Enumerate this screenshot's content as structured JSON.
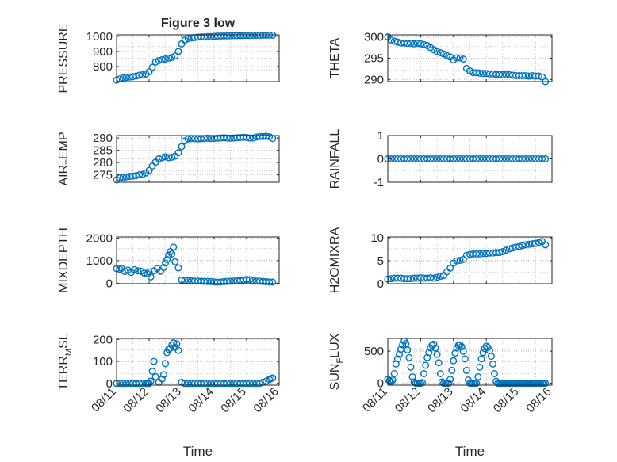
{
  "figure": {
    "title": "Figure 3 low",
    "colors": {
      "marker": "#0072bd",
      "axis": "#262626",
      "grid": "#bdbdbd",
      "background": "#ffffff"
    }
  },
  "chart_data": [
    {
      "id": "pressure",
      "type": "scatter",
      "title": "Figure 3 low",
      "ylabel": "PRESSURE",
      "ylabel_base": "PRESSURE",
      "ylabel_sub": "",
      "ylabel_rest": "",
      "xlabel": "",
      "ylim": [
        700,
        1010
      ],
      "yticks": [
        800,
        900,
        1000
      ],
      "xlim": [
        0,
        5
      ],
      "xticks": [],
      "xtick_labels": [],
      "grid": true,
      "marker": "circle",
      "x": [
        0.0,
        0.1,
        0.2,
        0.3,
        0.4,
        0.5,
        0.6,
        0.7,
        0.8,
        0.9,
        1.0,
        1.1,
        1.2,
        1.3,
        1.4,
        1.5,
        1.6,
        1.7,
        1.8,
        1.9,
        2.0,
        2.1,
        2.2,
        2.3,
        2.4,
        2.5,
        2.6,
        2.7,
        2.8,
        2.9,
        3.0,
        3.1,
        3.2,
        3.3,
        3.4,
        3.5,
        3.6,
        3.7,
        3.8,
        3.9,
        4.0,
        4.1,
        4.2,
        4.3,
        4.4,
        4.5,
        4.6,
        4.7,
        4.8
      ],
      "y": [
        710,
        718,
        724,
        728,
        730,
        733,
        737,
        742,
        745,
        750,
        765,
        795,
        830,
        840,
        845,
        850,
        855,
        860,
        870,
        900,
        950,
        975,
        985,
        990,
        992,
        995,
        996,
        996,
        998,
        998,
        1000,
        1002,
        1002,
        1003,
        1003,
        1004,
        1005,
        1005,
        1005,
        1006,
        1006,
        1006,
        1007,
        1007,
        1007,
        1008,
        1008,
        1008,
        1008
      ]
    },
    {
      "id": "theta",
      "type": "scatter",
      "ylabel": "THETA",
      "ylabel_base": "THETA",
      "ylabel_sub": "",
      "ylabel_rest": "",
      "xlabel": "",
      "ylim": [
        289.5,
        300.5
      ],
      "yticks": [
        290,
        295,
        300
      ],
      "xlim": [
        0,
        5
      ],
      "xticks": [],
      "xtick_labels": [],
      "grid": true,
      "marker": "circle",
      "x": [
        0.0,
        0.1,
        0.2,
        0.3,
        0.4,
        0.5,
        0.6,
        0.7,
        0.8,
        0.9,
        1.0,
        1.1,
        1.2,
        1.3,
        1.4,
        1.5,
        1.6,
        1.7,
        1.8,
        1.9,
        2.0,
        2.1,
        2.2,
        2.3,
        2.4,
        2.5,
        2.6,
        2.7,
        2.8,
        2.9,
        3.0,
        3.1,
        3.2,
        3.3,
        3.4,
        3.5,
        3.6,
        3.7,
        3.8,
        3.9,
        4.0,
        4.1,
        4.2,
        4.3,
        4.4,
        4.5,
        4.6,
        4.7,
        4.8
      ],
      "y": [
        300,
        299.3,
        299,
        298.8,
        298.6,
        298.6,
        298.5,
        298.5,
        298.4,
        298.5,
        298.4,
        298.2,
        298,
        297.5,
        297,
        296.6,
        296.3,
        296,
        295.6,
        295.3,
        294.6,
        295.1,
        295.1,
        294.8,
        292.6,
        292,
        291.6,
        291.6,
        291.5,
        291.4,
        291.4,
        291.3,
        291.3,
        291.2,
        291.2,
        291.1,
        291.1,
        291.1,
        291,
        290.9,
        290.9,
        290.9,
        290.9,
        290.8,
        290.9,
        290.8,
        290.8,
        290.6,
        289.5
      ]
    },
    {
      "id": "air_temp",
      "type": "scatter",
      "ylabel": "AIR_TEMP",
      "ylabel_base": "AIR",
      "ylabel_sub": "T",
      "ylabel_rest": "EMP",
      "xlabel": "",
      "ylim": [
        272,
        291
      ],
      "yticks": [
        275,
        280,
        285,
        290
      ],
      "xlim": [
        0,
        5
      ],
      "xticks": [],
      "xtick_labels": [],
      "grid": true,
      "marker": "circle",
      "x": [
        0.0,
        0.1,
        0.2,
        0.3,
        0.4,
        0.5,
        0.6,
        0.7,
        0.8,
        0.9,
        1.0,
        1.1,
        1.2,
        1.3,
        1.4,
        1.5,
        1.6,
        1.7,
        1.8,
        1.9,
        2.0,
        2.1,
        2.2,
        2.3,
        2.4,
        2.5,
        2.6,
        2.7,
        2.8,
        2.9,
        3.0,
        3.1,
        3.2,
        3.3,
        3.4,
        3.5,
        3.6,
        3.7,
        3.8,
        3.9,
        4.0,
        4.1,
        4.2,
        4.3,
        4.4,
        4.5,
        4.6,
        4.7,
        4.8
      ],
      "y": [
        273,
        273.8,
        274,
        274.2,
        274.4,
        274.5,
        274.7,
        275,
        275.2,
        275.8,
        276.8,
        278.6,
        280.2,
        281.5,
        282,
        282.3,
        282,
        282.2,
        282.6,
        284,
        286.5,
        288.8,
        289.6,
        289.8,
        289.7,
        289.6,
        289.7,
        289.8,
        289.9,
        289.8,
        289.8,
        289.9,
        290,
        290.1,
        290,
        289.9,
        290,
        290.1,
        290.2,
        290.3,
        290.2,
        290,
        290,
        290.4,
        290.6,
        290.6,
        290.7,
        290.5,
        289.8
      ]
    },
    {
      "id": "rainfall",
      "type": "scatter",
      "ylabel": "RAINFALL",
      "ylabel_base": "RAINFALL",
      "ylabel_sub": "",
      "ylabel_rest": "",
      "xlabel": "",
      "ylim": [
        -1,
        1
      ],
      "yticks": [
        -1,
        0,
        1
      ],
      "xlim": [
        0,
        5
      ],
      "xticks": [],
      "xtick_labels": [],
      "grid": true,
      "marker": "circle",
      "x": [
        0.0,
        0.1,
        0.2,
        0.3,
        0.4,
        0.5,
        0.6,
        0.7,
        0.8,
        0.9,
        1.0,
        1.1,
        1.2,
        1.3,
        1.4,
        1.5,
        1.6,
        1.7,
        1.8,
        1.9,
        2.0,
        2.1,
        2.2,
        2.3,
        2.4,
        2.5,
        2.6,
        2.7,
        2.8,
        2.9,
        3.0,
        3.1,
        3.2,
        3.3,
        3.4,
        3.5,
        3.6,
        3.7,
        3.8,
        3.9,
        4.0,
        4.1,
        4.2,
        4.3,
        4.4,
        4.5,
        4.6,
        4.7,
        4.8
      ],
      "y": [
        0,
        0,
        0,
        0,
        0,
        0,
        0,
        0,
        0,
        0,
        0,
        0,
        0,
        0,
        0,
        0,
        0,
        0,
        0,
        0,
        0,
        0,
        0,
        0,
        0,
        0,
        0,
        0,
        0,
        0,
        0,
        0,
        0,
        0,
        0,
        0,
        0,
        0,
        0,
        0,
        0,
        0,
        0,
        0,
        0,
        0,
        0,
        0,
        0
      ]
    },
    {
      "id": "mixdepth",
      "type": "scatter",
      "ylabel": "MIXDEPTH",
      "ylabel_base": "MIXDEPTH",
      "ylabel_sub": "",
      "ylabel_rest": "",
      "xlabel": "",
      "ylim": [
        -20,
        2050
      ],
      "yticks": [
        0,
        1000,
        2000
      ],
      "xlim": [
        0,
        5
      ],
      "xticks": [],
      "xtick_labels": [],
      "grid": true,
      "marker": "circle",
      "x": [
        0.0,
        0.1,
        0.15,
        0.25,
        0.35,
        0.45,
        0.55,
        0.65,
        0.75,
        0.85,
        0.95,
        1.0,
        1.05,
        1.15,
        1.25,
        1.35,
        1.45,
        1.5,
        1.55,
        1.6,
        1.65,
        1.7,
        1.75,
        1.8,
        1.9,
        2.0,
        2.1,
        2.2,
        2.3,
        2.4,
        2.5,
        2.6,
        2.7,
        2.8,
        2.9,
        3.0,
        3.1,
        3.2,
        3.3,
        3.4,
        3.5,
        3.6,
        3.7,
        3.8,
        3.9,
        4.0,
        4.1,
        4.2,
        4.3,
        4.4,
        4.5,
        4.6,
        4.7,
        4.8
      ],
      "y": [
        650,
        620,
        660,
        520,
        580,
        480,
        600,
        550,
        530,
        450,
        420,
        500,
        280,
        550,
        650,
        530,
        700,
        900,
        1050,
        1250,
        1400,
        1300,
        1600,
        950,
        680,
        140,
        130,
        120,
        110,
        100,
        95,
        90,
        85,
        80,
        75,
        60,
        50,
        55,
        70,
        80,
        90,
        100,
        110,
        130,
        150,
        170,
        160,
        120,
        100,
        90,
        80,
        70,
        60,
        50
      ]
    },
    {
      "id": "h2omixra",
      "type": "scatter",
      "ylabel": "H2OMIXRA",
      "ylabel_base": "H2OMIXRA",
      "ylabel_sub": "",
      "ylabel_rest": "",
      "xlabel": "",
      "ylim": [
        0,
        10.2
      ],
      "yticks": [
        0,
        5,
        10
      ],
      "xlim": [
        0,
        5
      ],
      "xticks": [],
      "xtick_labels": [],
      "grid": true,
      "marker": "circle",
      "x": [
        0.0,
        0.1,
        0.2,
        0.3,
        0.4,
        0.5,
        0.6,
        0.7,
        0.8,
        0.9,
        1.0,
        1.1,
        1.2,
        1.3,
        1.4,
        1.5,
        1.6,
        1.7,
        1.8,
        1.9,
        2.0,
        2.1,
        2.2,
        2.3,
        2.4,
        2.5,
        2.6,
        2.7,
        2.8,
        2.9,
        3.0,
        3.1,
        3.2,
        3.3,
        3.4,
        3.5,
        3.6,
        3.7,
        3.8,
        3.9,
        4.0,
        4.1,
        4.2,
        4.3,
        4.4,
        4.5,
        4.6,
        4.7,
        4.8
      ],
      "y": [
        1.0,
        1.1,
        1.2,
        1.2,
        1.2,
        1.1,
        1.1,
        1.1,
        1.2,
        1.2,
        1.3,
        1.2,
        1.2,
        1.3,
        1.2,
        1.4,
        1.6,
        1.8,
        2.6,
        3.4,
        4.5,
        5.0,
        5.1,
        5.3,
        6.2,
        6.4,
        6.5,
        6.5,
        6.5,
        6.6,
        6.6,
        6.7,
        6.7,
        6.8,
        6.8,
        7.0,
        7.3,
        7.6,
        7.8,
        8.0,
        8.1,
        8.3,
        8.5,
        8.6,
        8.7,
        8.8,
        9.0,
        9.2,
        8.5
      ]
    },
    {
      "id": "terr_msl",
      "type": "scatter",
      "ylabel": "TERR_MSL",
      "ylabel_base": "TERR",
      "ylabel_sub": "M",
      "ylabel_rest": "SL",
      "xlabel": "Time",
      "ylim": [
        -8,
        205
      ],
      "yticks": [
        0,
        100,
        200
      ],
      "xlim": [
        0,
        5
      ],
      "xticks": [
        0,
        1,
        2,
        3,
        4,
        5
      ],
      "xtick_labels": [
        "08/11",
        "08/12",
        "08/13",
        "08/14",
        "08/15",
        "08/16"
      ],
      "grid": true,
      "marker": "circle",
      "x": [
        0.0,
        0.1,
        0.2,
        0.3,
        0.4,
        0.5,
        0.6,
        0.7,
        0.8,
        0.9,
        0.95,
        1.0,
        1.05,
        1.1,
        1.15,
        1.2,
        1.3,
        1.4,
        1.45,
        1.5,
        1.55,
        1.6,
        1.65,
        1.7,
        1.75,
        1.8,
        1.85,
        1.9,
        2.0,
        2.1,
        2.2,
        2.3,
        2.4,
        2.5,
        2.6,
        2.7,
        2.8,
        2.9,
        3.0,
        3.1,
        3.2,
        3.3,
        3.4,
        3.5,
        3.6,
        3.7,
        3.8,
        3.9,
        4.0,
        4.1,
        4.2,
        4.3,
        4.4,
        4.5,
        4.6,
        4.7,
        4.75,
        4.8
      ],
      "y": [
        0,
        0,
        0,
        0,
        0,
        0,
        0,
        0,
        0,
        0,
        0,
        0,
        10,
        55,
        100,
        30,
        5,
        20,
        40,
        90,
        140,
        155,
        160,
        175,
        185,
        165,
        180,
        150,
        5,
        0,
        0,
        0,
        0,
        0,
        0,
        0,
        0,
        0,
        0,
        0,
        0,
        0,
        0,
        0,
        0,
        0,
        0,
        0,
        0,
        0,
        0,
        0,
        0,
        5,
        10,
        18,
        22,
        25
      ]
    },
    {
      "id": "sun_flux",
      "type": "scatter",
      "ylabel": "SUN_FLUX",
      "ylabel_base": "SUN",
      "ylabel_sub": "F",
      "ylabel_rest": "LUX",
      "xlabel": "Time",
      "ylim": [
        -30,
        700
      ],
      "yticks": [
        0,
        500
      ],
      "xlim": [
        0,
        5
      ],
      "xticks": [
        0,
        1,
        2,
        3,
        4,
        5
      ],
      "xtick_labels": [
        "08/11",
        "08/12",
        "08/13",
        "08/14",
        "08/15",
        "08/16"
      ],
      "grid": true,
      "marker": "circle",
      "x": [
        0.0,
        0.05,
        0.1,
        0.15,
        0.2,
        0.25,
        0.3,
        0.35,
        0.4,
        0.45,
        0.5,
        0.55,
        0.6,
        0.65,
        0.7,
        0.75,
        0.8,
        0.85,
        0.9,
        0.95,
        1.0,
        1.05,
        1.1,
        1.15,
        1.2,
        1.25,
        1.3,
        1.35,
        1.4,
        1.45,
        1.5,
        1.55,
        1.6,
        1.65,
        1.7,
        1.75,
        1.8,
        1.85,
        1.9,
        1.95,
        2.0,
        2.05,
        2.1,
        2.15,
        2.2,
        2.25,
        2.3,
        2.35,
        2.4,
        2.45,
        2.5,
        2.55,
        2.6,
        2.65,
        2.7,
        2.75,
        2.8,
        2.85,
        2.9,
        2.95,
        3.0,
        3.05,
        3.1,
        3.15,
        3.2,
        3.25,
        3.3,
        3.35,
        3.4,
        3.45,
        3.5,
        3.55,
        3.6,
        3.65,
        3.7,
        3.75,
        3.8,
        3.85,
        3.9,
        3.95,
        4.0,
        4.05,
        4.1,
        4.15,
        4.2,
        4.25,
        4.3,
        4.35,
        4.4,
        4.45,
        4.5,
        4.55,
        4.6,
        4.65,
        4.7,
        4.75,
        4.8
      ],
      "y": [
        60,
        40,
        20,
        50,
        150,
        300,
        380,
        450,
        530,
        600,
        660,
        620,
        520,
        400,
        250,
        100,
        20,
        0,
        0,
        0,
        0,
        10,
        150,
        280,
        400,
        480,
        550,
        590,
        610,
        550,
        450,
        320,
        150,
        20,
        0,
        0,
        0,
        0,
        60,
        200,
        350,
        470,
        550,
        590,
        600,
        570,
        500,
        380,
        200,
        50,
        0,
        0,
        0,
        0,
        0,
        100,
        250,
        380,
        480,
        540,
        580,
        560,
        510,
        420,
        300,
        150,
        30,
        0,
        0,
        0,
        0,
        0,
        0,
        0,
        0,
        0,
        0,
        0,
        0,
        0,
        0,
        0,
        0,
        0,
        0,
        0,
        0,
        0,
        0,
        0,
        0,
        0,
        0,
        0,
        0,
        0,
        0
      ]
    }
  ]
}
